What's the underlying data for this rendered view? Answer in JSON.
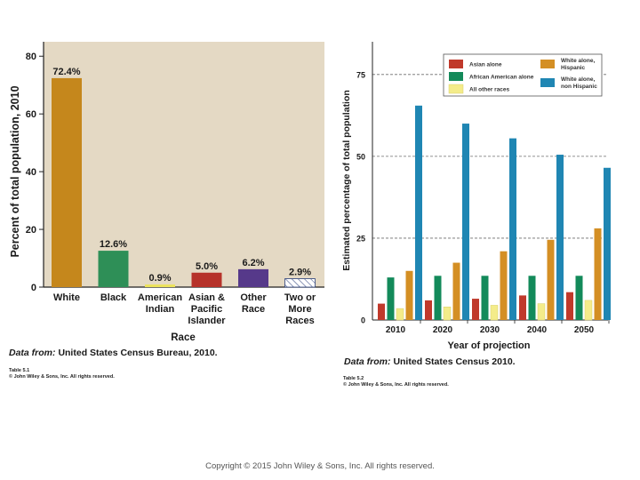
{
  "colors": {
    "panel_bg": "#e4d9c4",
    "white_bar": "#c5871c",
    "black_bar": "#2e8f57",
    "am_indian_bar": "#ece35a",
    "asian_bar": "#b6322a",
    "other_bar": "#56398a",
    "asian_alone": "#c0392b",
    "african_american_alone": "#138a5a",
    "all_other": "#f4ec8a",
    "white_hispanic": "#d48f24",
    "white_non_hispanic": "#1f86b3"
  },
  "copyright": "Copyright © 2015 John Wiley & Sons, Inc. All rights reserved.",
  "chart_data": [
    {
      "type": "bar",
      "title": "",
      "xlabel": "Race",
      "ylabel": "Percent of total population, 2010",
      "ylim": [
        0,
        85
      ],
      "yticks": [
        "0",
        "20",
        "40",
        "60",
        "80"
      ],
      "categories": [
        "White",
        "Black",
        "American Indian",
        "Asian & Pacific Islander",
        "Other Race",
        "Two or More Races"
      ],
      "category_lines": [
        [
          "White"
        ],
        [
          "Black"
        ],
        [
          "American",
          "Indian"
        ],
        [
          "Asian &",
          "Pacific",
          "Islander"
        ],
        [
          "Other",
          "Race"
        ],
        [
          "Two or",
          "More",
          "Races"
        ]
      ],
      "values": [
        72.4,
        12.6,
        0.9,
        5.0,
        6.2,
        2.9
      ],
      "data_labels": [
        "72.4%",
        "12.6%",
        "0.9%",
        "5.0%",
        "6.2%",
        "2.9%"
      ],
      "source_prefix": "Data from:",
      "source_text": "United States Census Bureau, 2010.",
      "table_id": "Table 5.1",
      "table_rights": "© John Wiley & Sons, Inc. All rights reserved."
    },
    {
      "type": "bar",
      "title": "",
      "xlabel": "Year of projection",
      "ylabel": "Estimated percentage of total population",
      "ylim": [
        0,
        85
      ],
      "yticks": [
        "0",
        "25",
        "50",
        "75"
      ],
      "grid": true,
      "categories": [
        "2010",
        "2020",
        "2030",
        "2040",
        "2050"
      ],
      "series": [
        {
          "name": "Asian alone",
          "values": [
            5,
            6,
            6.5,
            7.5,
            8.5
          ]
        },
        {
          "name": "African American alone",
          "values": [
            13,
            13.5,
            13.5,
            13.5,
            13.5
          ]
        },
        {
          "name": "All other races",
          "values": [
            3.5,
            4,
            4.5,
            5,
            6
          ]
        },
        {
          "name": "White alone, Hispanic",
          "values": [
            15,
            17.5,
            21,
            24.5,
            28
          ]
        },
        {
          "name": "White alone, non Hispanic",
          "values": [
            65.5,
            60,
            55.5,
            50.5,
            46.5
          ]
        }
      ],
      "legend_lines": [
        [
          "Asian alone"
        ],
        [
          "African American alone"
        ],
        [
          "All other races"
        ],
        [
          "White alone,",
          "Hispanic"
        ],
        [
          "White alone,",
          "non Hispanic"
        ]
      ],
      "source_prefix": "Data from:",
      "source_text": "United States Census 2010.",
      "table_id": "Table 5.2",
      "table_rights": "© John Wiley & Sons, Inc. All rights reserved."
    }
  ]
}
